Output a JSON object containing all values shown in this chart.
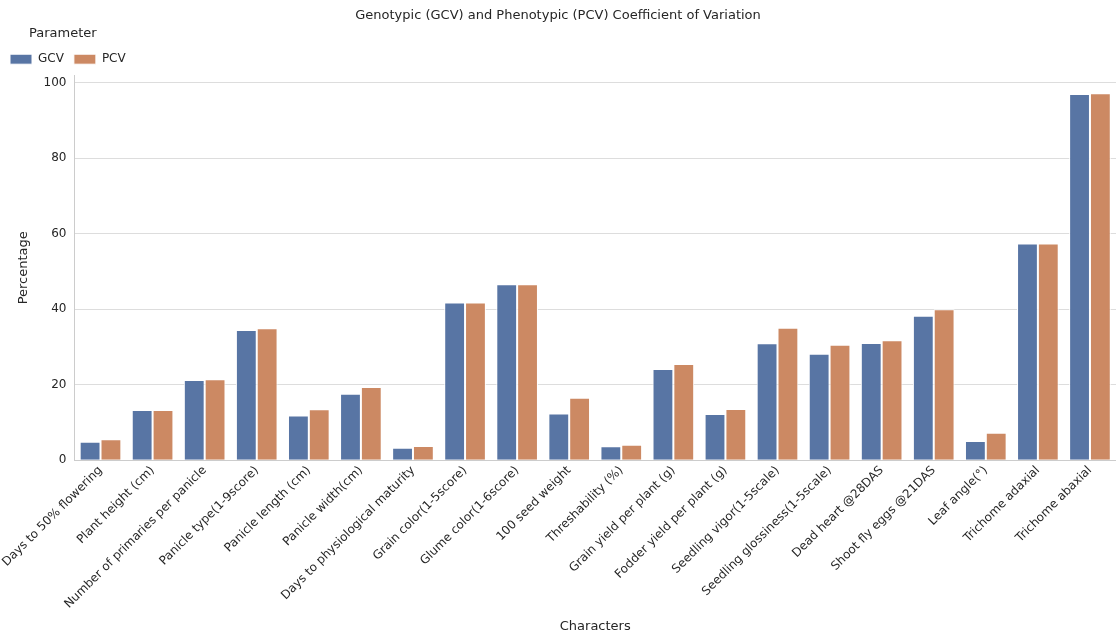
{
  "chart_data": {
    "type": "bar",
    "title": "Genotypic (GCV) and Phenotypic (PCV) Coefficient of Variation",
    "xlabel": "Characters",
    "ylabel": "Percentage",
    "legend_title": "Parameter",
    "legend": "top left",
    "grid": "y",
    "categories": [
      "Days to 50% flowering",
      "Plant height (cm)",
      "Number of primaries per panicle",
      "Panicle type(1-9score)",
      "Panicle length (cm)",
      "Panicle width(cm)",
      "Days to physiological maturity",
      "Grain color(1-5score)",
      "Glume color(1-6score)",
      "100 seed weight",
      "Threshability (%)",
      "Grain yield per plant (g)",
      "Fodder yield per plant (g)",
      "Seedling vigor(1-5scale)",
      "Seedling glossiness(1-5scale)",
      "Dead heart @28DAS",
      "Shoot fly eggs @21DAS",
      "Leaf angle(°)",
      "Trichome adaxial",
      "Trichome abaxial"
    ],
    "series": [
      {
        "name": "GCV",
        "color": "#5875a4",
        "values": [
          4.9,
          13.3,
          21.3,
          34.5,
          11.9,
          17.6,
          3.3,
          41.8,
          46.6,
          12.4,
          3.7,
          24.2,
          12.3,
          31.0,
          28.2,
          31.1,
          38.3,
          5.1,
          57.4,
          97.0
        ]
      },
      {
        "name": "PCV",
        "color": "#cc8963",
        "values": [
          5.6,
          13.3,
          21.5,
          35.0,
          13.5,
          19.4,
          3.8,
          41.8,
          46.6,
          16.6,
          4.1,
          25.5,
          13.6,
          35.1,
          30.6,
          31.8,
          40.0,
          7.3,
          57.4,
          97.2
        ]
      }
    ],
    "ylim": [
      0,
      102
    ],
    "yticks": [
      0,
      20,
      40,
      60,
      80,
      100
    ]
  }
}
